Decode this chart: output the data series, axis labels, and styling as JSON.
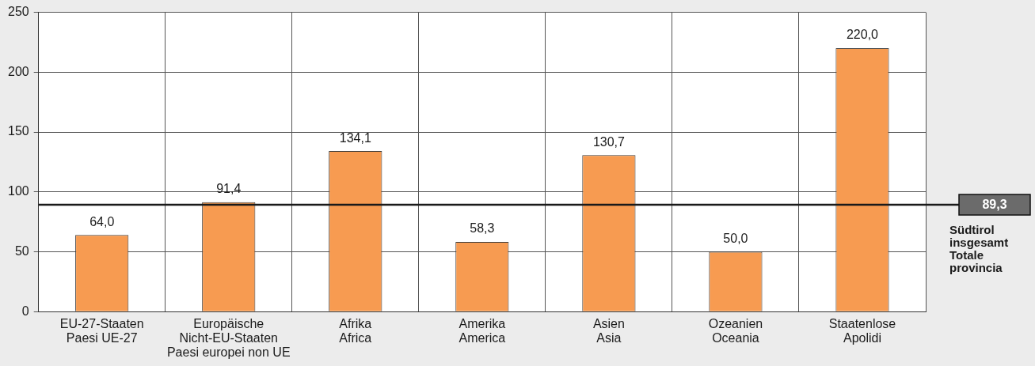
{
  "chart_data": {
    "type": "bar",
    "categories": [
      "EU-27-Staaten\nPaesi UE-27",
      "Europäische\nNicht-EU-Staaten\nPaesi europei non UE",
      "Afrika\nAfrica",
      "Amerika\nAmerica",
      "Asien\nAsia",
      "Ozeanien\nOceania",
      "Staatenlose\nApolidi"
    ],
    "values": [
      64.0,
      91.4,
      134.1,
      58.3,
      130.7,
      50.0,
      220.0
    ],
    "value_labels": [
      "64,0",
      "91,4",
      "134,1",
      "58,3",
      "130,7",
      "50,0",
      "220,0"
    ],
    "color": "#f79b51",
    "ylim": [
      0,
      250
    ],
    "yticks": [
      0,
      50,
      100,
      150,
      200,
      250
    ],
    "grid": true,
    "ref_lines": [
      {
        "axis": "y",
        "value": 89.3,
        "label": "89,3",
        "color": "#1a1a1a"
      }
    ],
    "annotations": [
      "Südtirol insgesamt\nTotale provincia"
    ]
  }
}
